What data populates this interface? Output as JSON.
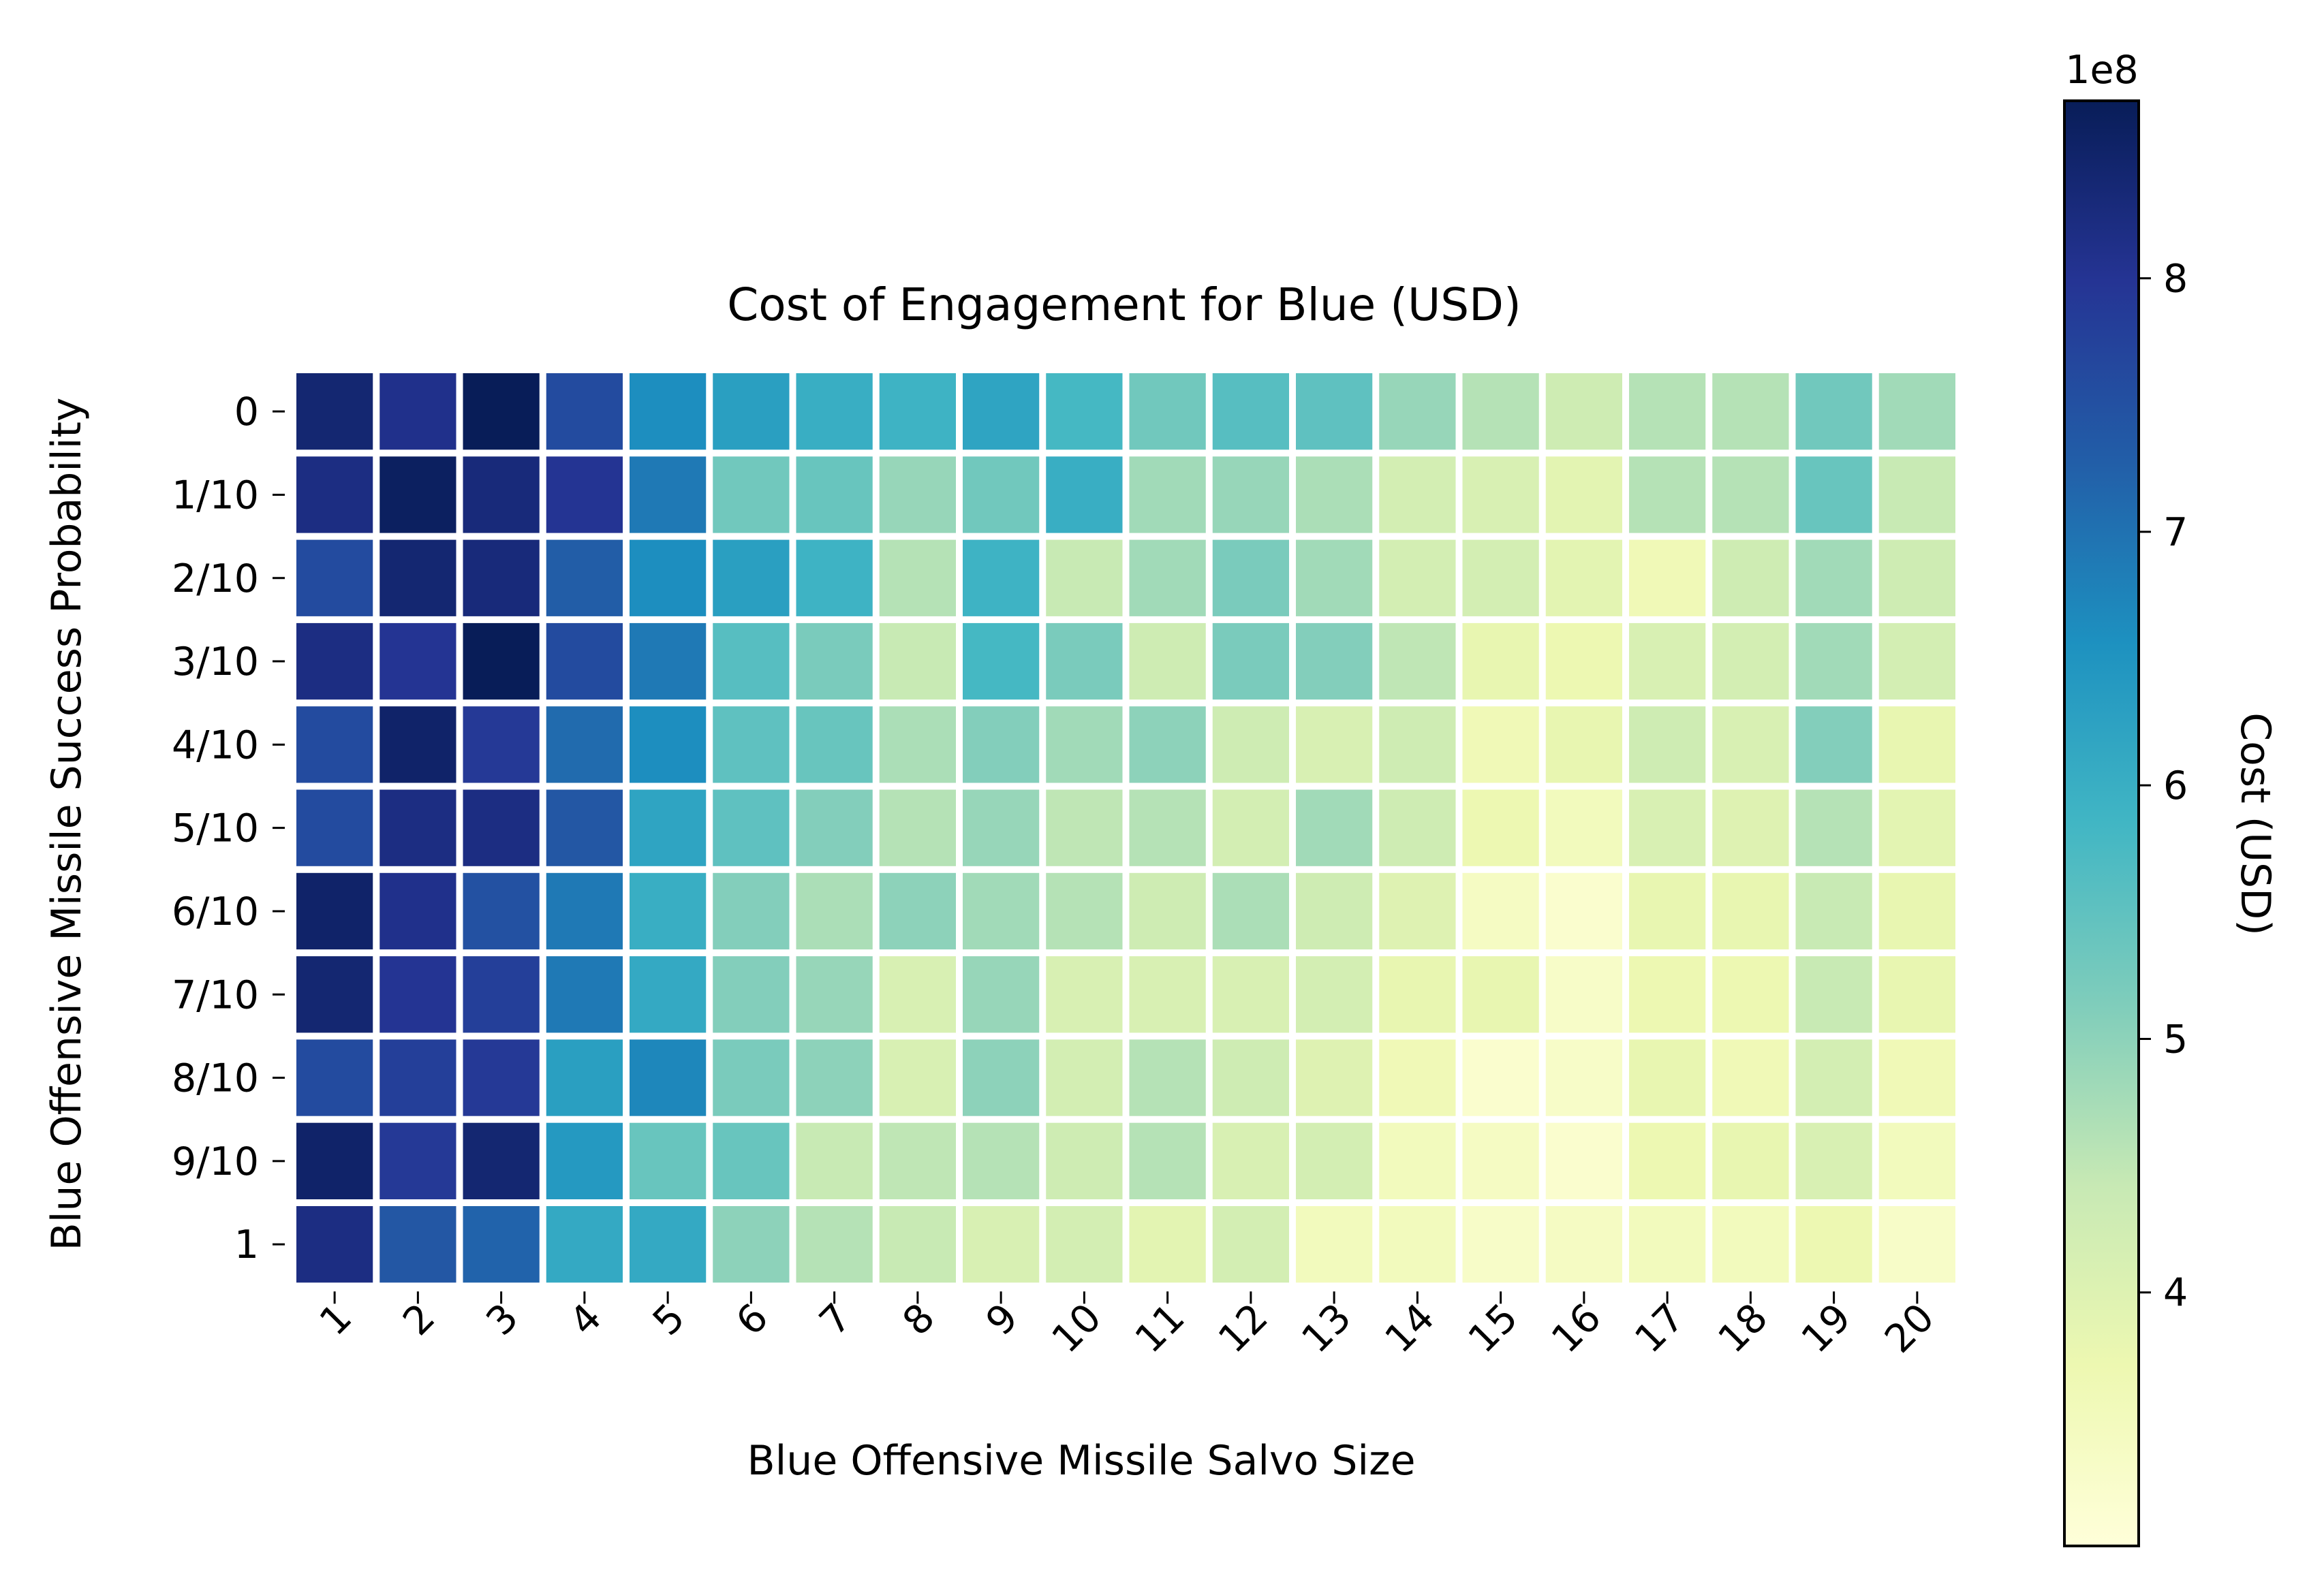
{
  "chart_data": {
    "type": "heatmap",
    "title": "Cost of Engagement for Blue (USD)",
    "xlabel": "Blue Offensive Missile Salvo Size",
    "ylabel": "Blue Offensive Missile Success Probability",
    "x_categories": [
      "1",
      "2",
      "3",
      "4",
      "5",
      "6",
      "7",
      "8",
      "9",
      "10",
      "11",
      "12",
      "13",
      "14",
      "15",
      "16",
      "17",
      "18",
      "19",
      "20"
    ],
    "y_categories": [
      "0",
      "1/10",
      "2/10",
      "3/10",
      "4/10",
      "5/10",
      "6/10",
      "7/10",
      "8/10",
      "9/10",
      "1"
    ],
    "values": [
      [
        8.4,
        8.1,
        8.7,
        7.6,
        6.6,
        6.3,
        6.0,
        5.9,
        6.2,
        5.8,
        5.3,
        5.6,
        5.5,
        4.9,
        4.6,
        4.3,
        4.6,
        4.6,
        5.3,
        4.8
      ],
      [
        8.2,
        8.6,
        8.3,
        8.0,
        6.9,
        5.3,
        5.4,
        4.9,
        5.3,
        6.0,
        4.8,
        4.9,
        4.7,
        4.2,
        4.1,
        3.9,
        4.6,
        4.6,
        5.4,
        4.4
      ],
      [
        7.6,
        8.4,
        8.3,
        7.3,
        6.6,
        6.3,
        5.9,
        4.6,
        5.9,
        4.4,
        4.8,
        5.2,
        4.8,
        4.2,
        4.2,
        3.9,
        3.6,
        4.3,
        4.8,
        4.3
      ],
      [
        8.2,
        8.0,
        8.8,
        7.6,
        6.9,
        5.6,
        5.2,
        4.4,
        5.8,
        5.2,
        4.3,
        5.2,
        5.1,
        4.5,
        3.8,
        3.7,
        4.1,
        4.2,
        4.8,
        4.2
      ],
      [
        7.6,
        8.5,
        7.9,
        7.1,
        6.6,
        5.5,
        5.4,
        4.7,
        5.1,
        4.8,
        5.0,
        4.3,
        4.1,
        4.3,
        3.6,
        3.8,
        4.3,
        4.1,
        5.1,
        3.8
      ],
      [
        7.6,
        8.2,
        8.2,
        7.4,
        6.2,
        5.5,
        5.1,
        4.6,
        4.9,
        4.5,
        4.6,
        4.2,
        4.8,
        4.3,
        3.7,
        3.5,
        4.1,
        4.0,
        4.6,
        3.9
      ],
      [
        8.5,
        8.1,
        7.5,
        6.9,
        6.0,
        5.1,
        4.7,
        5.0,
        4.8,
        4.6,
        4.3,
        4.7,
        4.3,
        4.0,
        3.4,
        3.2,
        3.8,
        3.8,
        4.4,
        3.8
      ],
      [
        8.4,
        8.0,
        7.8,
        6.9,
        6.1,
        5.1,
        4.9,
        4.1,
        4.9,
        4.1,
        4.1,
        4.1,
        4.2,
        3.8,
        3.8,
        3.3,
        3.7,
        3.7,
        4.4,
        3.8
      ],
      [
        7.6,
        7.8,
        7.9,
        6.3,
        6.7,
        5.2,
        5.0,
        4.1,
        5.0,
        4.2,
        4.6,
        4.3,
        4.0,
        3.6,
        3.2,
        3.3,
        3.8,
        3.6,
        4.2,
        3.6
      ],
      [
        8.5,
        7.9,
        8.4,
        6.4,
        5.4,
        5.4,
        4.4,
        4.5,
        4.6,
        4.3,
        4.6,
        4.1,
        4.2,
        3.5,
        3.4,
        3.2,
        3.7,
        3.8,
        4.1,
        3.5
      ],
      [
        8.2,
        7.4,
        7.2,
        6.1,
        6.1,
        5.0,
        4.6,
        4.4,
        4.1,
        4.2,
        3.9,
        4.2,
        3.5,
        3.5,
        3.3,
        3.4,
        3.5,
        3.5,
        3.7,
        3.3
      ]
    ],
    "value_unit_multiplier": "1e8",
    "colormap": "YlGnBu",
    "colorbar": {
      "label": "Cost (USD)",
      "exponent_label": "1e8",
      "range": [
        3.0,
        8.7
      ],
      "ticks": [
        4,
        5,
        6,
        7,
        8
      ]
    },
    "grid": false
  }
}
